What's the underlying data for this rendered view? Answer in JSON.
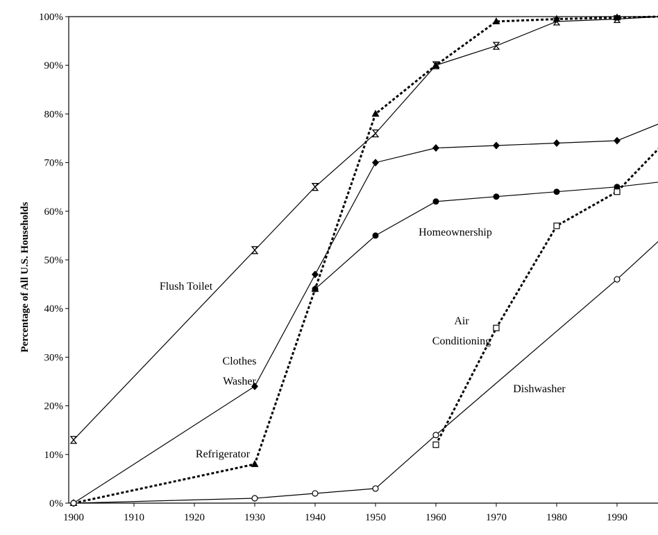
{
  "chart_data": {
    "type": "line",
    "title": "",
    "xlabel": "",
    "ylabel": "Percentage of All U.S. Households",
    "xlim": [
      1900,
      1997
    ],
    "ylim": [
      0,
      100
    ],
    "x_ticks": [
      1900,
      1910,
      1920,
      1930,
      1940,
      1950,
      1960,
      1970,
      1980,
      1990
    ],
    "x_tick_labels": [
      "1900",
      "1910",
      "1920",
      "1930",
      "1940",
      "1950",
      "1960",
      "1970",
      "1980",
      "1990"
    ],
    "y_ticks": [
      0,
      10,
      20,
      30,
      40,
      50,
      60,
      70,
      80,
      90,
      100
    ],
    "y_tick_labels": [
      "0%",
      "10%",
      "20%",
      "30%",
      "40%",
      "50%",
      "60%",
      "70%",
      "80%",
      "90%",
      "100%"
    ],
    "grid": false,
    "legend": "none",
    "series": [
      {
        "name": "Flush Toilet",
        "label_lines": [
          "Flush Toilet"
        ],
        "style": "solid",
        "marker": "hourglass",
        "points": [
          [
            1900,
            13
          ],
          [
            1930,
            52
          ],
          [
            1940,
            65
          ],
          [
            1950,
            76
          ],
          [
            1960,
            90
          ],
          [
            1970,
            94
          ],
          [
            1980,
            99
          ],
          [
            1990,
            99.5
          ],
          [
            1997,
            100
          ]
        ]
      },
      {
        "name": "Refrigerator",
        "label_lines": [
          "Refrigerator"
        ],
        "style": "dotted",
        "marker": "triangle",
        "points": [
          [
            1900,
            0
          ],
          [
            1930,
            8
          ],
          [
            1940,
            44
          ],
          [
            1950,
            80
          ],
          [
            1960,
            90
          ],
          [
            1970,
            99
          ],
          [
            1980,
            99.5
          ],
          [
            1990,
            99.8
          ],
          [
            1997,
            100
          ]
        ]
      },
      {
        "name": "Clothes Washer",
        "label_lines": [
          "Clothes",
          "Washer"
        ],
        "style": "solid",
        "marker": "diamond",
        "points": [
          [
            1900,
            0
          ],
          [
            1930,
            24
          ],
          [
            1940,
            47
          ],
          [
            1950,
            70
          ],
          [
            1960,
            73
          ],
          [
            1970,
            73.5
          ],
          [
            1980,
            74
          ],
          [
            1990,
            74.5
          ],
          [
            1997,
            78
          ]
        ]
      },
      {
        "name": "Homeownership",
        "label_lines": [
          "Homeownership"
        ],
        "style": "solid",
        "marker": "circle-filled",
        "points": [
          [
            1940,
            44
          ],
          [
            1950,
            55
          ],
          [
            1960,
            62
          ],
          [
            1970,
            63
          ],
          [
            1980,
            64
          ],
          [
            1990,
            65
          ],
          [
            1997,
            66
          ]
        ]
      },
      {
        "name": "Air Conditioning",
        "label_lines": [
          "Air",
          "Conditioning"
        ],
        "style": "dotted",
        "marker": "square-open",
        "points": [
          [
            1960,
            12
          ],
          [
            1970,
            36
          ],
          [
            1980,
            57
          ],
          [
            1990,
            64
          ],
          [
            1997,
            73
          ]
        ]
      },
      {
        "name": "Dishwasher",
        "label_lines": [
          "Dishwasher"
        ],
        "style": "solid",
        "marker": "circle-open",
        "points": [
          [
            1900,
            0
          ],
          [
            1930,
            1
          ],
          [
            1940,
            2
          ],
          [
            1950,
            3
          ],
          [
            1960,
            14
          ],
          [
            1990,
            46
          ],
          [
            1997,
            54
          ]
        ]
      }
    ]
  }
}
